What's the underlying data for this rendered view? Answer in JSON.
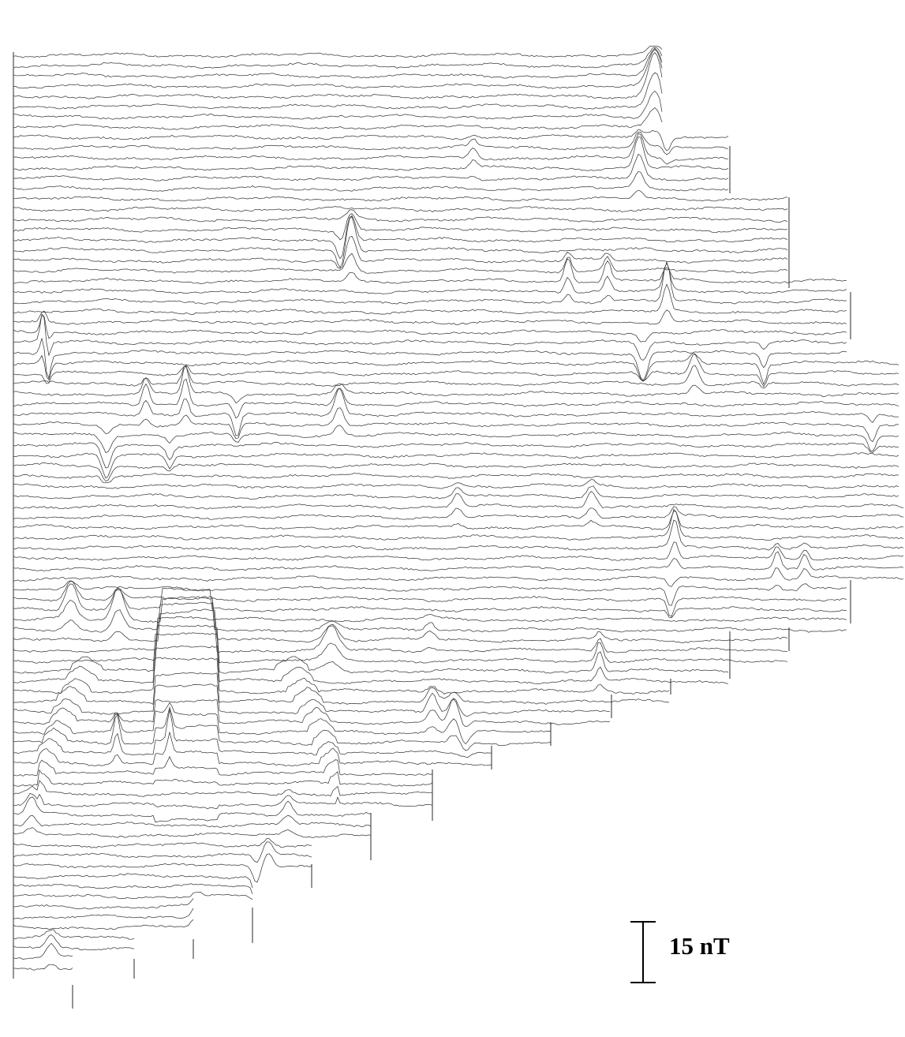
{
  "chart_data": {
    "type": "line",
    "title": "",
    "xlabel": "",
    "ylabel": "",
    "scale_bar_value": 15,
    "scale_bar_unit": "nT",
    "scale_bar_label": "15 nT",
    "line_count": 90,
    "grid": false,
    "legend": "none",
    "anomalies": [
      {
        "name": "rectangular-stepped-anomaly",
        "lines": [
          54,
          74
        ],
        "x_range": [
          195,
          275
        ]
      },
      {
        "name": "curved-ditch-anomaly",
        "lines": [
          64,
          78
        ]
      },
      {
        "name": "strong-dipole-top-right",
        "lines": [
          0,
          20
        ]
      }
    ]
  }
}
